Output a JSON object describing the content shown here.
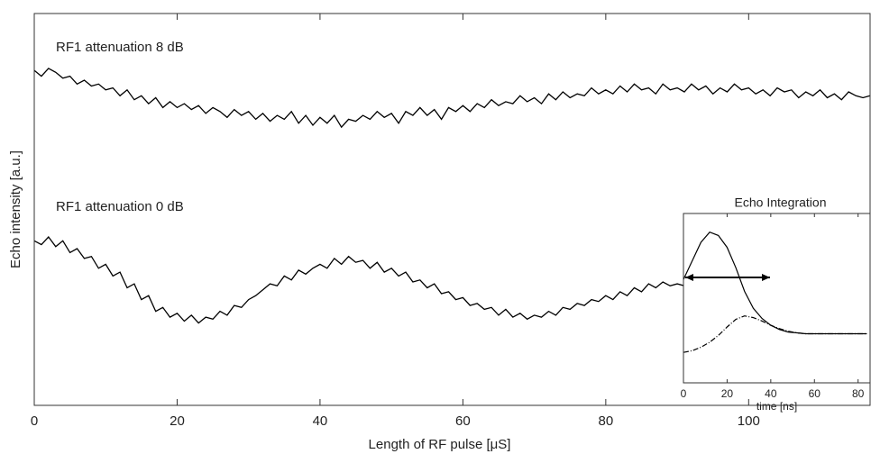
{
  "chart_data": [
    {
      "type": "line",
      "xlabel": "Length of RF pulse [μS]",
      "ylabel": "Echo intensity [a.u.]",
      "xlim": [
        0,
        117
      ],
      "xticks": [
        0,
        20,
        40,
        60,
        80,
        100
      ],
      "ylim": [
        0,
        100
      ],
      "x": [
        0,
        1,
        2,
        3,
        4,
        5,
        6,
        7,
        8,
        9,
        10,
        11,
        12,
        13,
        14,
        15,
        16,
        17,
        18,
        19,
        20,
        21,
        22,
        23,
        24,
        25,
        26,
        27,
        28,
        29,
        30,
        31,
        32,
        33,
        34,
        35,
        36,
        37,
        38,
        39,
        40,
        41,
        42,
        43,
        44,
        45,
        46,
        47,
        48,
        49,
        50,
        51,
        52,
        53,
        54,
        55,
        56,
        57,
        58,
        59,
        60,
        61,
        62,
        63,
        64,
        65,
        66,
        67,
        68,
        69,
        70,
        71,
        72,
        73,
        74,
        75,
        76,
        77,
        78,
        79,
        80,
        81,
        82,
        83,
        84,
        85,
        86,
        87,
        88,
        89,
        90,
        91,
        92,
        93,
        94,
        95,
        96,
        97,
        98,
        99,
        100,
        101,
        102,
        103,
        104,
        105,
        106,
        107,
        108,
        109,
        110,
        111,
        112,
        113,
        114,
        115,
        116,
        117
      ],
      "series": [
        {
          "name": "RF1 attenuation 8 dB",
          "color": "#000000",
          "values": [
            85.5,
            84,
            86,
            85,
            83.5,
            84,
            82,
            83,
            81.5,
            82,
            80.5,
            81,
            79,
            80.5,
            78,
            79,
            77,
            78.5,
            76,
            77.5,
            76,
            77,
            75.5,
            76.5,
            74.5,
            76,
            75,
            73.5,
            75.5,
            74,
            75,
            73,
            74.5,
            72.5,
            74,
            73,
            75,
            72,
            74,
            71.5,
            73.5,
            72,
            74,
            71,
            73,
            72.5,
            74,
            73,
            75,
            73.5,
            74.5,
            72,
            75,
            74,
            76,
            74,
            75.5,
            73,
            76,
            75,
            76.5,
            75,
            77,
            76,
            78,
            76.5,
            77.5,
            77,
            79,
            77.5,
            78.5,
            77,
            79.5,
            78,
            80,
            78.5,
            79.5,
            79,
            81,
            79.5,
            80.5,
            79.5,
            81.5,
            80,
            82,
            80.5,
            81,
            79.5,
            82,
            80.5,
            81,
            80,
            82,
            80.5,
            81.5,
            79.5,
            81,
            80,
            82,
            80.5,
            81,
            79.5,
            80.5,
            79,
            81,
            80,
            80.5,
            78.5,
            80,
            79,
            80.5,
            78.5,
            79.5,
            78,
            80,
            79,
            78.5,
            79
          ]
        },
        {
          "name": "RF1 attenuation 0 dB",
          "color": "#000000",
          "values": [
            42,
            41,
            43,
            40.5,
            42,
            39,
            40,
            37.5,
            38,
            35,
            36,
            33,
            34,
            30,
            31,
            27,
            28,
            24,
            25,
            22.5,
            23.5,
            21.5,
            23,
            21,
            22.5,
            22,
            24,
            23,
            25.5,
            25,
            27,
            28,
            29.5,
            31,
            30.5,
            33,
            32,
            34.5,
            33.5,
            35,
            36,
            35,
            37.5,
            36,
            38,
            36.5,
            37,
            35,
            36.5,
            34,
            35,
            33,
            34,
            31.5,
            32,
            30,
            31,
            28.5,
            29,
            27,
            27.5,
            25.5,
            26,
            24.5,
            25,
            23,
            24.5,
            22.5,
            23.5,
            22,
            23,
            22.5,
            24,
            23,
            25,
            24.5,
            26,
            25.5,
            27,
            26.5,
            28,
            27,
            29,
            28,
            30,
            29,
            31,
            30,
            31.5,
            30.5,
            31,
            30.5,
            32,
            31,
            32.5,
            31,
            31.5,
            30.5,
            31,
            30,
            31,
            29.5,
            30.5,
            29,
            30,
            29.5,
            30,
            28.5,
            29.5,
            28,
            29,
            28.5,
            29.5,
            28,
            29,
            28.5,
            29,
            28
          ]
        }
      ]
    },
    {
      "type": "line",
      "title": "Echo Integration",
      "xlabel": "time [ns]",
      "xlim": [
        0,
        85.5
      ],
      "xticks": [
        0,
        20,
        40,
        60,
        80
      ],
      "ylim": [
        0,
        100
      ],
      "x": [
        0,
        4,
        8,
        12,
        16,
        20,
        24,
        28,
        32,
        36,
        40,
        44,
        48,
        52,
        56,
        60,
        64,
        68,
        72,
        76,
        80,
        84
      ],
      "series": [
        {
          "color": "#000000",
          "style": "solid",
          "values": [
            61,
            72,
            83,
            89,
            87,
            80,
            68,
            54,
            44,
            38,
            34,
            31.5,
            30,
            29.5,
            29,
            29,
            29,
            29,
            29,
            29,
            29,
            29
          ]
        },
        {
          "color": "#000000",
          "style": "dashdot",
          "values": [
            18,
            19,
            21,
            24,
            28,
            33,
            37.5,
            39.5,
            38.5,
            36.5,
            34,
            32,
            30.5,
            29.5,
            29,
            29,
            29,
            29,
            29,
            29,
            29,
            29
          ]
        }
      ]
    }
  ]
}
